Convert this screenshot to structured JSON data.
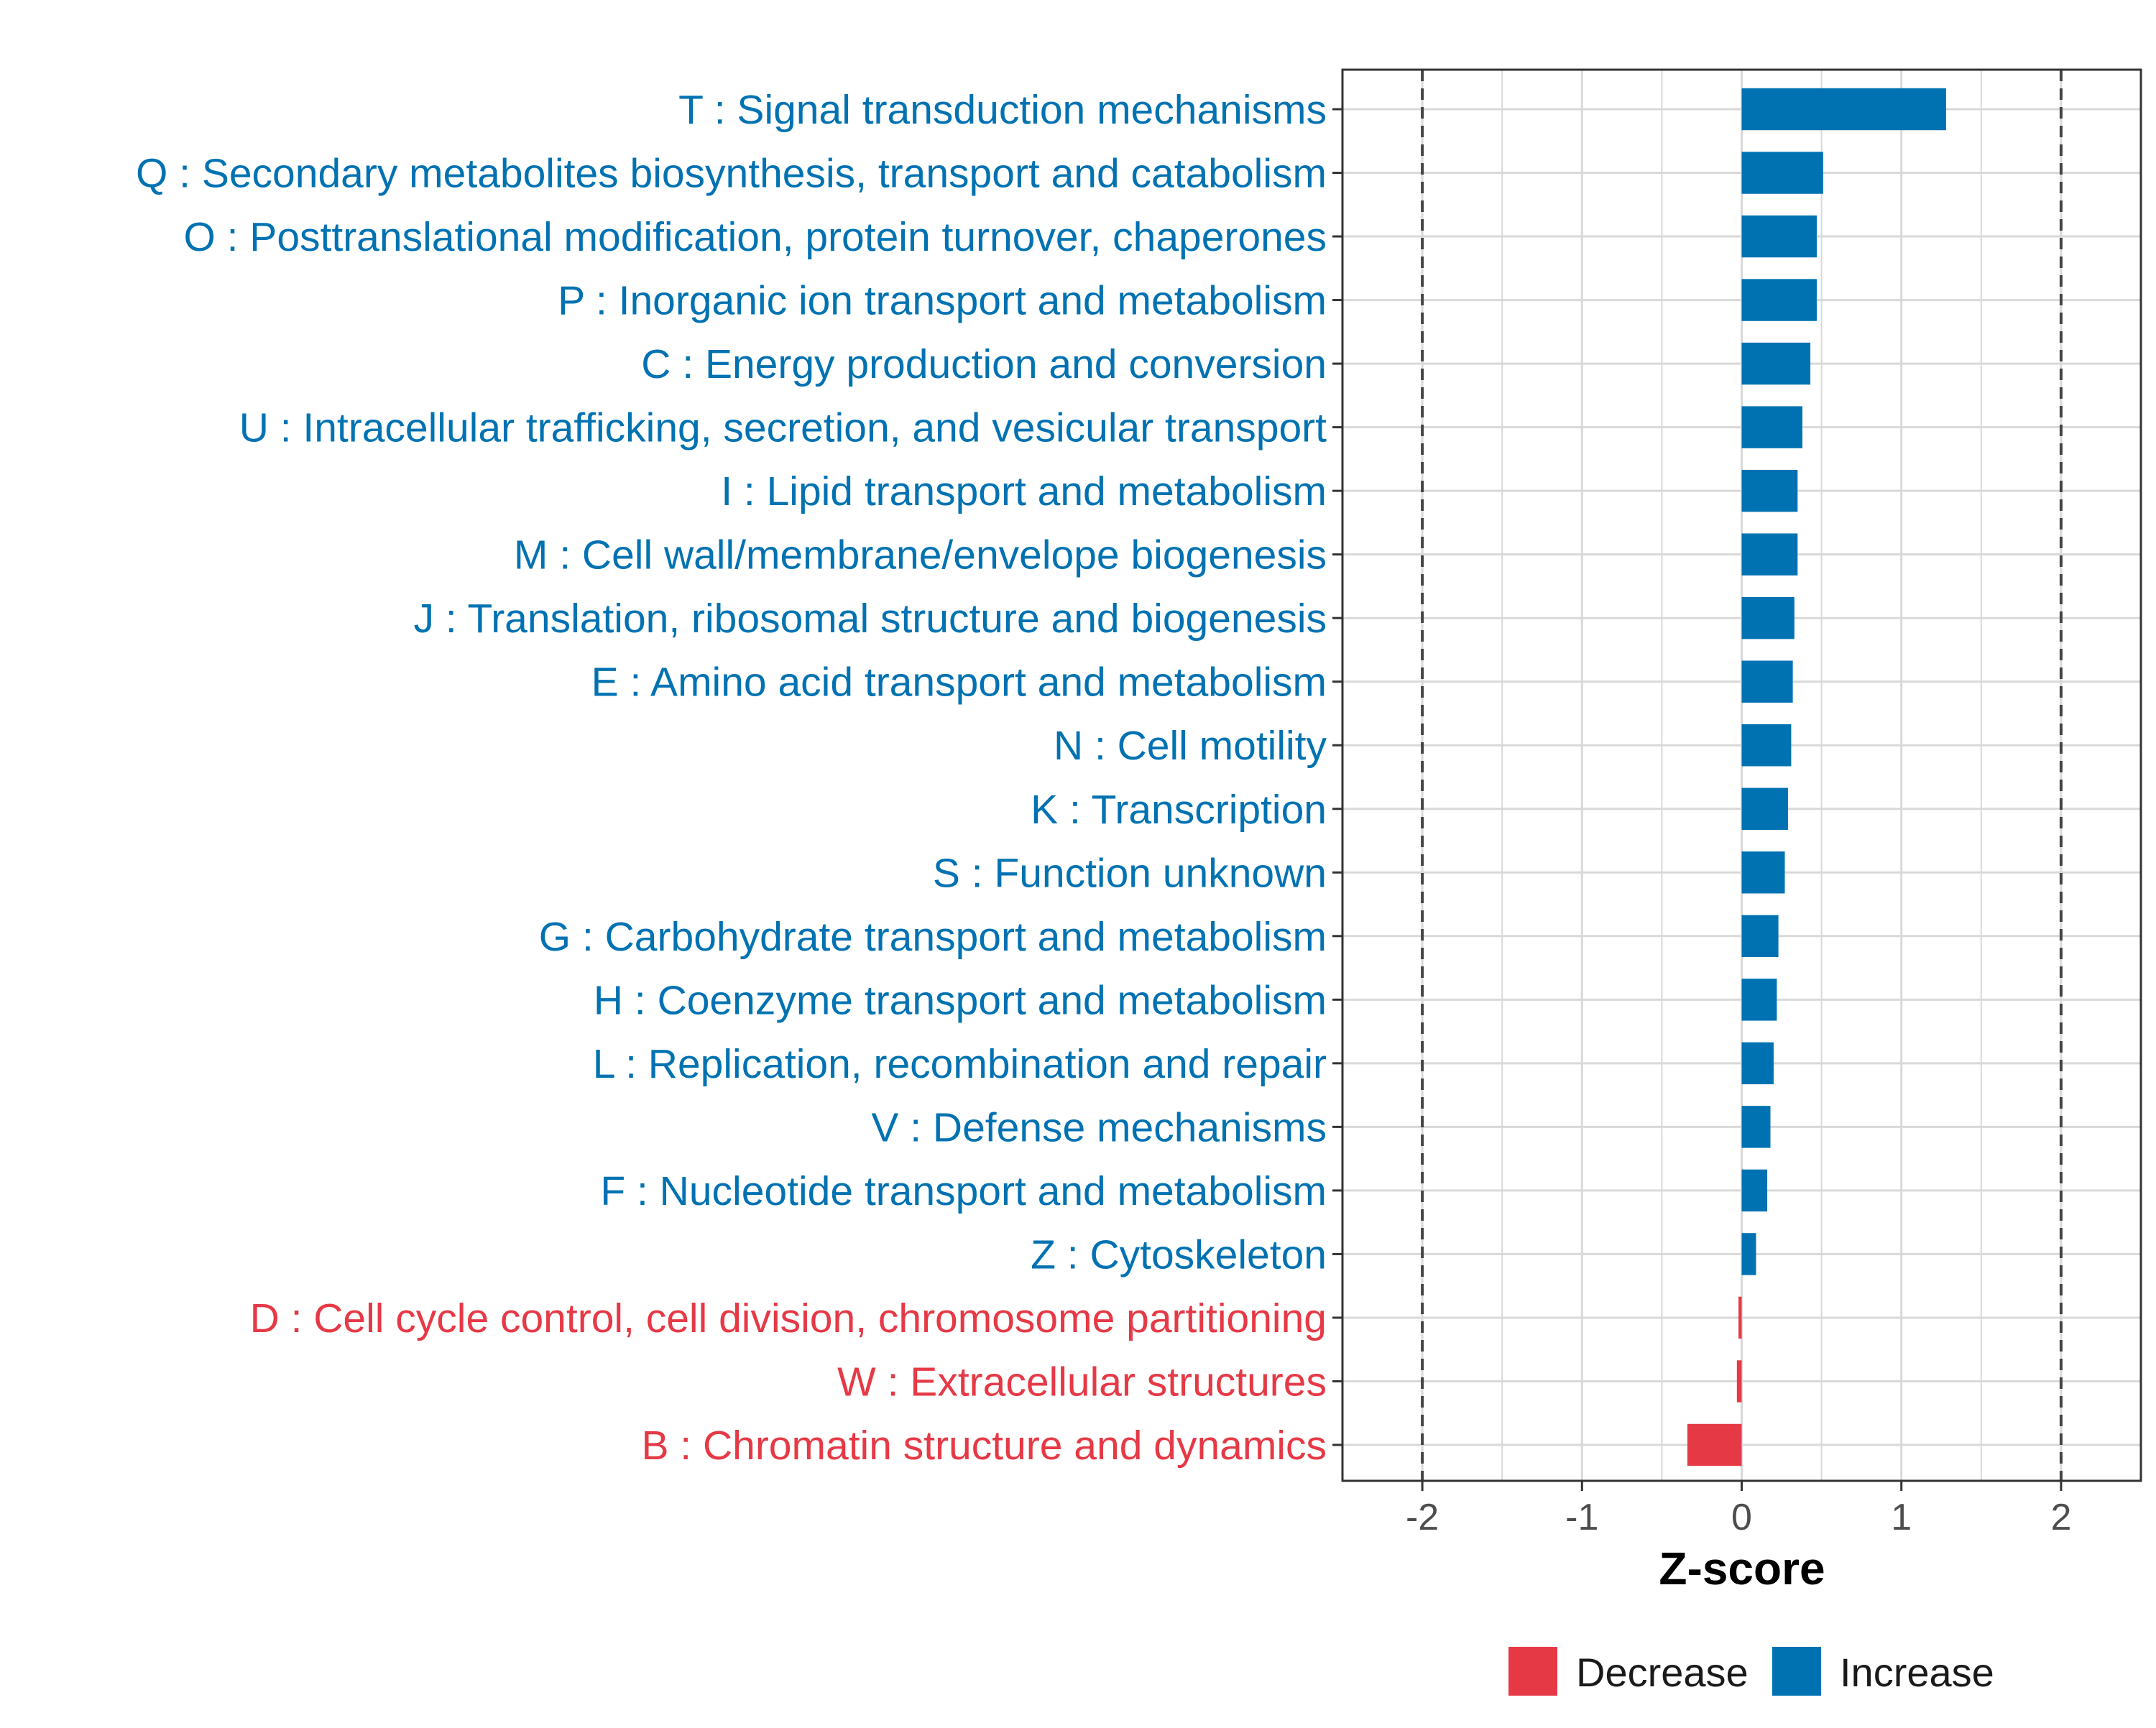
{
  "chart_data": {
    "type": "bar",
    "orientation": "horizontal",
    "xlabel": "Z-score",
    "xlim": [
      -2.5,
      2.5
    ],
    "xticks": [
      -2,
      -1,
      0,
      1,
      2
    ],
    "xtick_labels": [
      "-2",
      "-1",
      "0",
      "1",
      "2"
    ],
    "reference_lines": [
      -2,
      2
    ],
    "grid": true,
    "legend_position": "bottom",
    "categories": [
      "T : Signal transduction mechanisms",
      "Q : Secondary metabolites biosynthesis, transport and catabolism",
      "O : Posttranslational modification, protein turnover, chaperones",
      "P : Inorganic ion transport and metabolism",
      "C : Energy production and conversion",
      "U : Intracellular trafficking, secretion, and vesicular transport",
      "I : Lipid transport and metabolism",
      "M : Cell wall/membrane/envelope biogenesis",
      "J : Translation, ribosomal structure and biogenesis",
      "E : Amino acid transport and metabolism",
      "N : Cell motility",
      "K : Transcription",
      "S : Function unknown",
      "G : Carbohydrate transport and metabolism",
      "H : Coenzyme transport and metabolism",
      "L : Replication, recombination and repair",
      "V : Defense mechanisms",
      "F : Nucleotide transport and metabolism",
      "Z : Cytoskeleton",
      "D : Cell cycle control, cell division, chromosome partitioning",
      "W : Extracellular structures",
      "B : Chromatin structure and dynamics"
    ],
    "values": [
      1.28,
      0.51,
      0.47,
      0.47,
      0.43,
      0.38,
      0.35,
      0.35,
      0.33,
      0.32,
      0.31,
      0.29,
      0.27,
      0.23,
      0.22,
      0.2,
      0.18,
      0.16,
      0.09,
      -0.02,
      -0.03,
      -0.34
    ],
    "groups": [
      "Increase",
      "Increase",
      "Increase",
      "Increase",
      "Increase",
      "Increase",
      "Increase",
      "Increase",
      "Increase",
      "Increase",
      "Increase",
      "Increase",
      "Increase",
      "Increase",
      "Increase",
      "Increase",
      "Increase",
      "Increase",
      "Increase",
      "Decrease",
      "Decrease",
      "Decrease"
    ],
    "legend": [
      {
        "name": "Decrease",
        "color": "#E63946"
      },
      {
        "name": "Increase",
        "color": "#0072B2"
      }
    ],
    "colors": {
      "increase": "#0072B2",
      "decrease": "#E63946",
      "grid": "#d9d9d9",
      "panel_border": "#333333",
      "reference_line": "#444444"
    }
  }
}
